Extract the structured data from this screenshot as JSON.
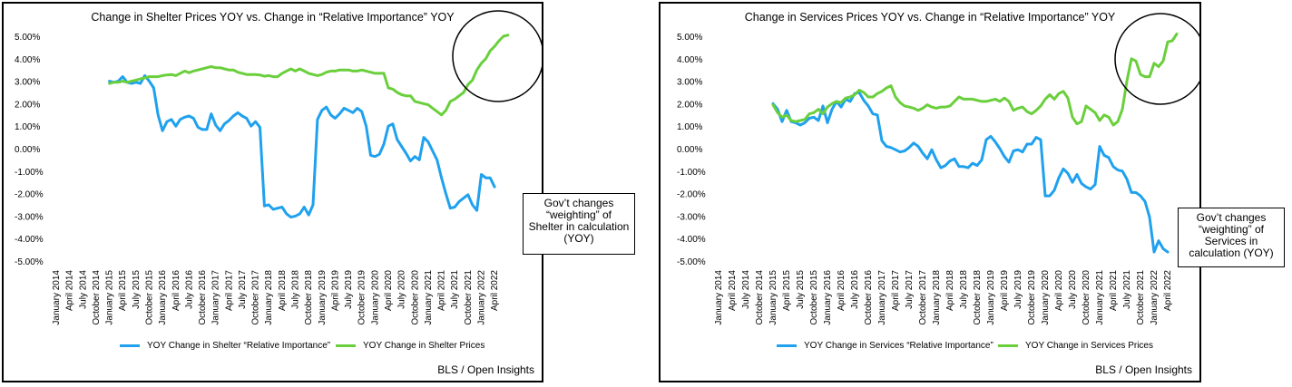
{
  "charts": [
    {
      "title": "Change in Shelter Prices YOY vs. Change in “Relative Importance” YOY",
      "source": "BLS / Open Insights",
      "callout_lines": [
        "Gov’t changes",
        "“weighting” of",
        "Shelter in calculation",
        "(YOY)"
      ],
      "legend": [
        {
          "label": "YOY Change in Shelter “Relative Importance”",
          "color": "#1FA1EE"
        },
        {
          "label": "YOY Change in Shelter Prices",
          "color": "#6ACF3C"
        }
      ]
    },
    {
      "title": "Change in Services Prices YOY vs. Change in “Relative Importance” YOY",
      "source": "BLS / Open Insights",
      "callout_lines": [
        "Gov’t changes",
        "“weighting” of",
        "Services in",
        "calculation (YOY)"
      ],
      "legend": [
        {
          "label": "YOY Change in Services “Relative Importance”",
          "color": "#1FA1EE"
        },
        {
          "label": "YOY Change in Services Prices",
          "color": "#6ACF3C"
        }
      ]
    }
  ],
  "chart_data": [
    {
      "type": "line",
      "title": "Change in Shelter Prices YOY vs. Change in “Relative Importance” YOY",
      "xlabel": "",
      "ylabel": "",
      "x_ticks": [
        "January 2014",
        "April 2014",
        "July 2014",
        "October 2014",
        "January 2015",
        "April 2015",
        "July 2015",
        "October 2015",
        "January 2016",
        "April 2016",
        "July 2016",
        "October 2016",
        "January 2017",
        "April 2017",
        "July 2017",
        "October 2017",
        "January 2018",
        "April 2018",
        "July 2018",
        "October 2018",
        "January 2019",
        "April 2019",
        "July 2019",
        "October 2019",
        "January 2020",
        "April 2020",
        "July 2020",
        "October 2020",
        "January 2021",
        "April 2021",
        "July 2021",
        "October 2021",
        "January 2022",
        "April 2022"
      ],
      "y_ticks": [
        "5.00%",
        "4.00%",
        "3.00%",
        "2.00%",
        "1.00%",
        "0.00%",
        "-1.00%",
        "-2.00%",
        "-3.00%",
        "-4.00%",
        "-5.00%"
      ],
      "ylim": [
        -5,
        5
      ],
      "grid": false,
      "legend_position": "bottom",
      "series": [
        {
          "name": "YOY Change in Shelter “Relative Importance”",
          "color": "#1FA1EE",
          "start": "January 2015",
          "values": [
            3.0,
            2.95,
            3.0,
            3.2,
            2.95,
            2.9,
            2.95,
            2.9,
            3.25,
            3.0,
            2.7,
            1.5,
            0.8,
            1.2,
            1.3,
            1.0,
            1.3,
            1.4,
            1.45,
            1.35,
            0.95,
            0.85,
            0.85,
            1.55,
            1.05,
            0.8,
            1.1,
            1.25,
            1.45,
            1.6,
            1.45,
            1.35,
            1.0,
            1.2,
            0.95,
            -2.55,
            -2.5,
            -2.7,
            -2.65,
            -2.6,
            -2.9,
            -3.05,
            -3.0,
            -2.9,
            -2.6,
            -2.95,
            -2.5,
            1.3,
            1.7,
            1.85,
            1.5,
            1.35,
            1.55,
            1.8,
            1.7,
            1.6,
            1.8,
            1.65,
            1.0,
            -0.3,
            -0.35,
            -0.25,
            0.2,
            1.0,
            1.1,
            0.4,
            0.1,
            -0.2,
            -0.55,
            -0.35,
            -0.5,
            0.5,
            0.3,
            -0.1,
            -0.5,
            -1.3,
            -2.0,
            -2.65,
            -2.6,
            -2.35,
            -2.2,
            -2.05,
            -2.5,
            -2.75,
            -1.15,
            -1.3,
            -1.3,
            -1.7
          ]
        },
        {
          "name": "YOY Change in Shelter Prices",
          "color": "#6ACF3C",
          "start": "January 2015",
          "values": [
            2.9,
            2.95,
            2.95,
            3.0,
            2.95,
            3.0,
            3.05,
            3.1,
            3.15,
            3.2,
            3.2,
            3.2,
            3.25,
            3.28,
            3.3,
            3.25,
            3.35,
            3.45,
            3.38,
            3.45,
            3.5,
            3.55,
            3.6,
            3.65,
            3.6,
            3.6,
            3.55,
            3.5,
            3.5,
            3.4,
            3.35,
            3.3,
            3.3,
            3.3,
            3.28,
            3.22,
            3.25,
            3.2,
            3.2,
            3.35,
            3.45,
            3.55,
            3.45,
            3.55,
            3.45,
            3.35,
            3.3,
            3.25,
            3.3,
            3.4,
            3.45,
            3.45,
            3.5,
            3.5,
            3.5,
            3.45,
            3.45,
            3.5,
            3.45,
            3.4,
            3.35,
            3.35,
            3.35,
            2.7,
            2.65,
            2.5,
            2.4,
            2.35,
            2.35,
            2.1,
            2.05,
            2.0,
            1.95,
            1.8,
            1.65,
            1.5,
            1.7,
            2.1,
            2.2,
            2.35,
            2.5,
            2.85,
            3.05,
            3.5,
            3.8,
            4.0,
            4.35,
            4.55,
            4.8,
            5.0,
            5.05
          ]
        }
      ]
    },
    {
      "type": "line",
      "title": "Change in Services Prices YOY vs. Change in “Relative Importance” YOY",
      "xlabel": "",
      "ylabel": "",
      "x_ticks": [
        "January 2014",
        "April 2014",
        "July 2014",
        "October 2014",
        "January 2015",
        "April 2015",
        "July 2015",
        "October 2015",
        "January 2016",
        "April 2016",
        "July 2016",
        "October 2016",
        "January 2017",
        "April 2017",
        "July 2017",
        "October 2017",
        "January 2018",
        "April 2018",
        "July 2018",
        "October 2018",
        "January 2019",
        "April 2019",
        "July 2019",
        "October 2019",
        "January 2020",
        "April 2020",
        "July 2020",
        "October 2020",
        "January 2021",
        "April 2021",
        "July 2021",
        "October 2021",
        "January 2022",
        "April 2022"
      ],
      "y_ticks": [
        "5.00%",
        "4.00%",
        "3.00%",
        "2.00%",
        "1.00%",
        "0.00%",
        "-1.00%",
        "-2.00%",
        "-3.00%",
        "-4.00%",
        "-5.00%"
      ],
      "ylim": [
        -5,
        5
      ],
      "grid": false,
      "legend_position": "bottom",
      "series": [
        {
          "name": "YOY Change in Services “Relative Importance”",
          "color": "#1FA1EE",
          "start": "January 2015",
          "values": [
            2.0,
            1.75,
            1.2,
            1.7,
            1.2,
            1.15,
            1.05,
            1.15,
            1.35,
            1.4,
            1.25,
            1.9,
            1.15,
            1.75,
            2.1,
            1.85,
            2.2,
            2.1,
            2.45,
            2.5,
            2.15,
            1.9,
            1.55,
            1.5,
            0.35,
            0.1,
            0.05,
            -0.05,
            -0.15,
            -0.1,
            0.05,
            0.25,
            0.1,
            -0.2,
            -0.45,
            -0.05,
            -0.5,
            -0.85,
            -0.75,
            -0.55,
            -0.45,
            -0.8,
            -0.8,
            -0.85,
            -0.65,
            -0.75,
            -0.5,
            0.4,
            0.55,
            0.3,
            0.0,
            -0.35,
            -0.6,
            -0.1,
            -0.05,
            -0.15,
            0.2,
            0.2,
            0.5,
            0.4,
            -2.1,
            -2.1,
            -1.85,
            -1.3,
            -0.9,
            -1.1,
            -1.5,
            -1.15,
            -1.55,
            -1.7,
            -1.8,
            -1.6,
            0.1,
            -0.3,
            -0.4,
            -0.8,
            -0.95,
            -1.0,
            -1.35,
            -1.95,
            -1.95,
            -2.1,
            -2.35,
            -3.05,
            -4.6,
            -4.1,
            -4.45,
            -4.6
          ]
        },
        {
          "name": "YOY Change in Services Prices",
          "color": "#6ACF3C",
          "start": "January 2015",
          "values": [
            1.95,
            1.6,
            1.4,
            1.5,
            1.25,
            1.2,
            1.25,
            1.3,
            1.55,
            1.6,
            1.75,
            1.55,
            1.85,
            2.0,
            2.1,
            2.05,
            2.25,
            2.3,
            2.4,
            2.6,
            2.5,
            2.3,
            2.3,
            2.45,
            2.55,
            2.7,
            2.8,
            2.3,
            2.05,
            1.9,
            1.85,
            1.8,
            1.7,
            1.8,
            1.95,
            1.85,
            1.8,
            1.85,
            1.85,
            1.9,
            2.1,
            2.3,
            2.2,
            2.2,
            2.2,
            2.15,
            2.1,
            2.1,
            2.15,
            2.2,
            2.1,
            2.25,
            2.1,
            1.7,
            1.8,
            1.85,
            1.65,
            1.55,
            1.7,
            1.9,
            2.2,
            2.4,
            2.2,
            2.45,
            2.55,
            2.25,
            1.4,
            1.1,
            1.2,
            1.9,
            1.75,
            1.6,
            1.25,
            1.5,
            1.4,
            1.05,
            1.2,
            1.75,
            3.0,
            4.0,
            3.9,
            3.3,
            3.2,
            3.2,
            3.8,
            3.65,
            3.9,
            4.75,
            4.8,
            5.1
          ]
        }
      ]
    }
  ]
}
